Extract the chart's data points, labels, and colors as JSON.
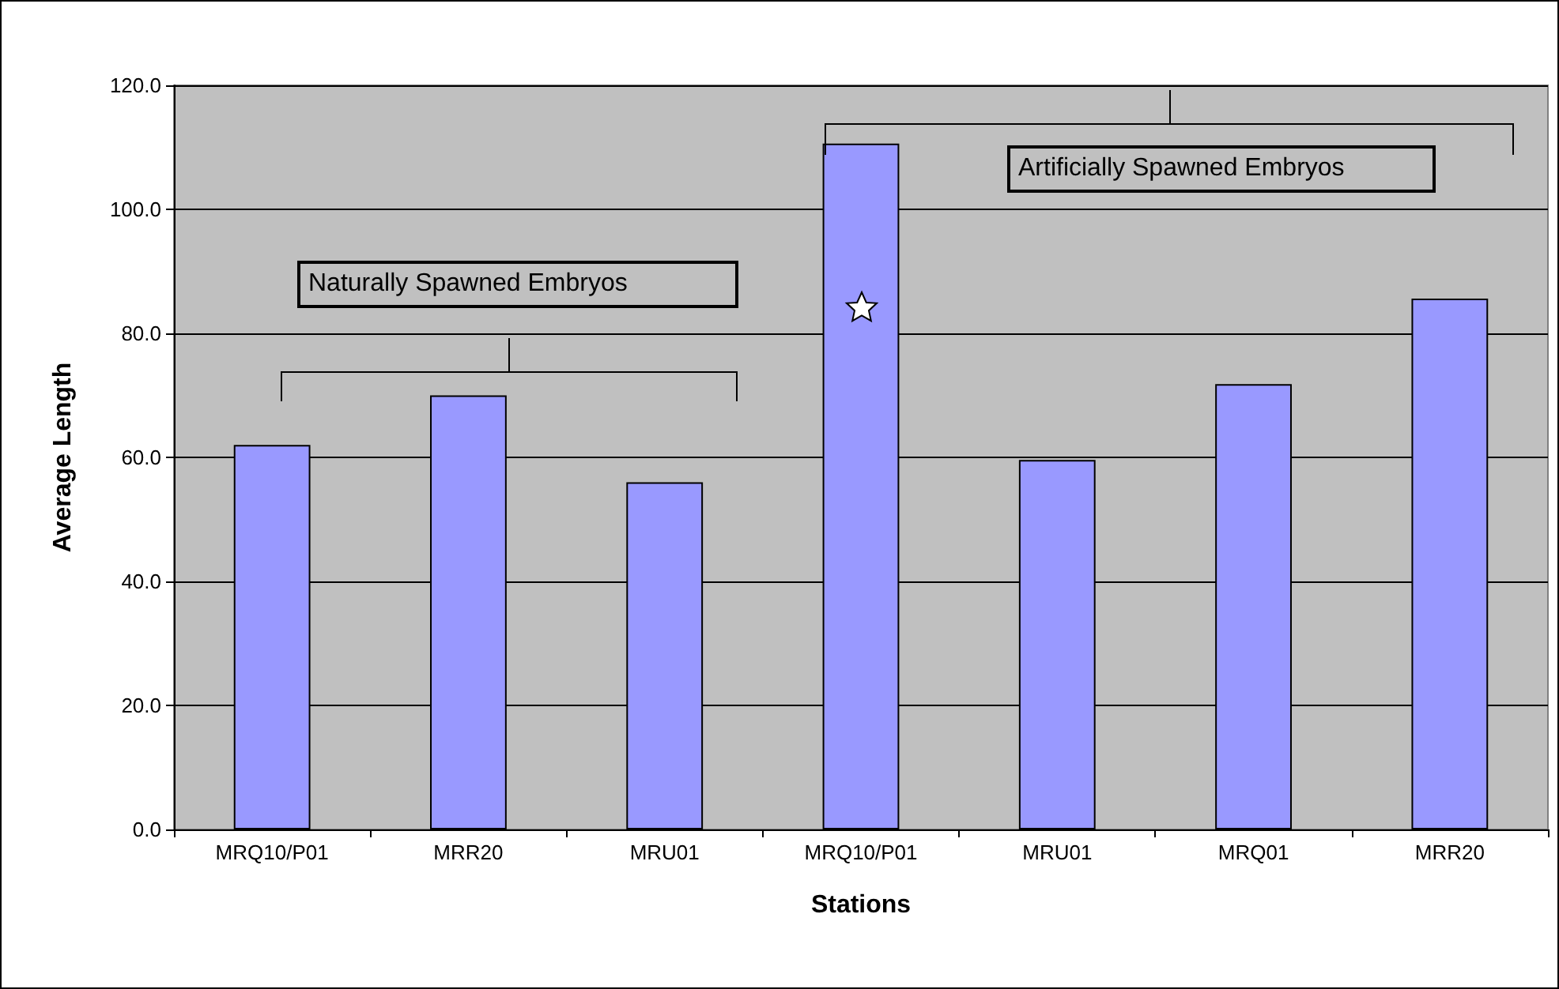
{
  "chart_data": {
    "type": "bar",
    "xlabel": "Stations",
    "ylabel": "Average Length",
    "categories": [
      "MRQ10/P01",
      "MRR20",
      "MRU01",
      "MRQ10/P01",
      "MRU01",
      "MRQ01",
      "MRR20"
    ],
    "values": [
      62.0,
      70.0,
      56.0,
      110.6,
      59.6,
      71.8,
      85.6
    ],
    "color": "#9999ff",
    "ylim": [
      0,
      120
    ],
    "yticks": [
      {
        "value": 0,
        "label": "0.0"
      },
      {
        "value": 20,
        "label": "20.0"
      },
      {
        "value": 40,
        "label": "40.0"
      },
      {
        "value": 60,
        "label": "60.0"
      },
      {
        "value": 80,
        "label": "80.0"
      },
      {
        "value": 100,
        "label": "100.0"
      },
      {
        "value": 120,
        "label": "120.0"
      }
    ],
    "grid": "y",
    "annotations": [
      "Naturally Spawned Embryos",
      "Artificially Spawned Embryos"
    ]
  }
}
